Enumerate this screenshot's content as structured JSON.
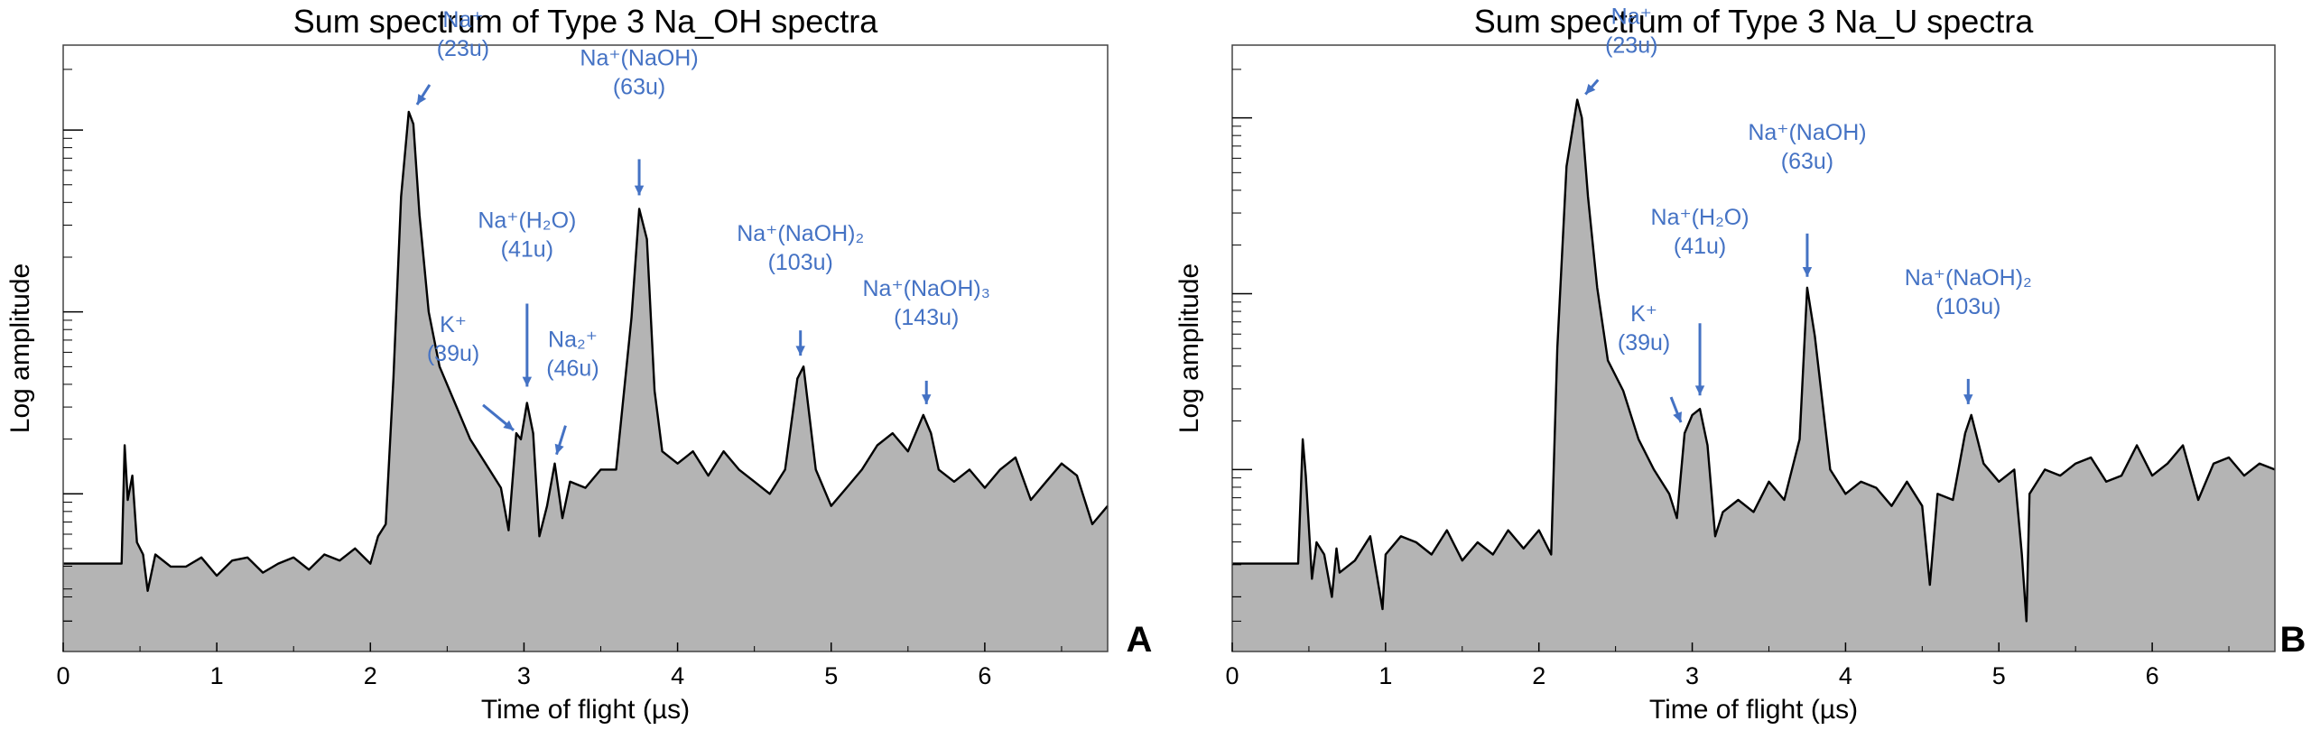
{
  "chart_data": [
    {
      "type": "area",
      "panel_letter": "A",
      "title": "Sum spectrum of Type 3 Na_OH spectra",
      "xlabel": "Time of flight (µs)",
      "ylabel": "Log amplitude",
      "xlim": [
        0,
        6.8
      ],
      "ylim": [
        0,
        10
      ],
      "y_scale": "log",
      "xticks": [
        "0",
        "1",
        "2",
        "3",
        "4",
        "5",
        "6"
      ],
      "grid": false,
      "fill_color": "#b4b4b4",
      "line_color": "#000000",
      "x": [
        0,
        0.38,
        0.4,
        0.42,
        0.45,
        0.48,
        0.52,
        0.55,
        0.6,
        0.7,
        0.8,
        0.9,
        1.0,
        1.1,
        1.2,
        1.3,
        1.4,
        1.5,
        1.6,
        1.7,
        1.8,
        1.9,
        2.0,
        2.05,
        2.1,
        2.15,
        2.2,
        2.25,
        2.28,
        2.32,
        2.38,
        2.45,
        2.55,
        2.65,
        2.75,
        2.85,
        2.9,
        2.95,
        2.98,
        3.02,
        3.06,
        3.1,
        3.15,
        3.2,
        3.25,
        3.3,
        3.4,
        3.5,
        3.6,
        3.7,
        3.75,
        3.8,
        3.85,
        3.9,
        4.0,
        4.1,
        4.2,
        4.3,
        4.4,
        4.5,
        4.6,
        4.7,
        4.78,
        4.82,
        4.9,
        5.0,
        5.1,
        5.2,
        5.3,
        5.4,
        5.5,
        5.6,
        5.65,
        5.7,
        5.8,
        5.9,
        6.0,
        6.1,
        6.2,
        6.3,
        6.4,
        6.5,
        6.6,
        6.7,
        6.8
      ],
      "values": [
        1.45,
        1.45,
        3.4,
        2.5,
        2.9,
        1.8,
        1.6,
        1.0,
        1.6,
        1.4,
        1.4,
        1.55,
        1.25,
        1.5,
        1.55,
        1.3,
        1.45,
        1.55,
        1.35,
        1.6,
        1.5,
        1.7,
        1.45,
        1.9,
        2.1,
        4.5,
        7.5,
        8.9,
        8.7,
        7.2,
        5.6,
        4.7,
        4.1,
        3.5,
        3.1,
        2.7,
        2.0,
        3.6,
        3.5,
        4.1,
        3.6,
        1.9,
        2.4,
        3.1,
        2.2,
        2.8,
        2.7,
        3.0,
        3.0,
        5.5,
        7.3,
        6.8,
        4.3,
        3.3,
        3.1,
        3.3,
        2.9,
        3.3,
        3.0,
        2.8,
        2.6,
        3.0,
        4.5,
        4.7,
        3.0,
        2.4,
        2.7,
        3.0,
        3.4,
        3.6,
        3.3,
        3.9,
        3.6,
        3.0,
        2.8,
        3.0,
        2.7,
        3.0,
        3.2,
        2.5,
        2.8,
        3.1,
        2.9,
        2.1,
        2.4
      ]
    },
    {
      "type": "area",
      "panel_letter": "B",
      "title": "Sum spectrum of Type 3 Na_U spectra",
      "xlabel": "Time of flight (µs)",
      "ylabel": "Log amplitude",
      "xlim": [
        0,
        6.8
      ],
      "ylim": [
        0,
        10
      ],
      "y_scale": "log",
      "xticks": [
        "0",
        "1",
        "2",
        "3",
        "4",
        "5",
        "6"
      ],
      "grid": false,
      "fill_color": "#b4b4b4",
      "line_color": "#000000",
      "x": [
        0,
        0.43,
        0.46,
        0.48,
        0.52,
        0.55,
        0.6,
        0.65,
        0.68,
        0.7,
        0.8,
        0.9,
        0.98,
        1.0,
        1.1,
        1.2,
        1.3,
        1.4,
        1.5,
        1.6,
        1.7,
        1.8,
        1.9,
        2.0,
        2.08,
        2.12,
        2.18,
        2.25,
        2.28,
        2.32,
        2.38,
        2.45,
        2.55,
        2.65,
        2.75,
        2.85,
        2.9,
        2.95,
        3.0,
        3.05,
        3.1,
        3.15,
        3.2,
        3.3,
        3.4,
        3.5,
        3.6,
        3.7,
        3.75,
        3.8,
        3.9,
        4.0,
        4.1,
        4.2,
        4.3,
        4.4,
        4.5,
        4.55,
        4.6,
        4.7,
        4.78,
        4.82,
        4.9,
        5.0,
        5.1,
        5.15,
        5.18,
        5.2,
        5.3,
        5.4,
        5.5,
        5.6,
        5.7,
        5.8,
        5.9,
        6.0,
        6.1,
        6.2,
        6.3,
        6.4,
        6.5,
        6.6,
        6.7,
        6.8
      ],
      "values": [
        1.45,
        1.45,
        3.5,
        2.9,
        1.2,
        1.8,
        1.6,
        0.9,
        1.7,
        1.3,
        1.5,
        1.9,
        0.7,
        1.6,
        1.9,
        1.8,
        1.6,
        2.0,
        1.5,
        1.8,
        1.6,
        2.0,
        1.7,
        2.0,
        1.6,
        5.0,
        8.0,
        9.1,
        8.8,
        7.5,
        6.0,
        4.8,
        4.3,
        3.5,
        3.0,
        2.6,
        2.2,
        3.6,
        3.9,
        4.0,
        3.4,
        1.9,
        2.3,
        2.5,
        2.3,
        2.8,
        2.5,
        3.5,
        6.0,
        5.2,
        3.0,
        2.6,
        2.8,
        2.7,
        2.4,
        2.8,
        2.4,
        1.1,
        2.6,
        2.5,
        3.6,
        3.9,
        3.1,
        2.8,
        3.0,
        1.6,
        0.5,
        2.6,
        3.0,
        2.9,
        3.1,
        3.2,
        2.8,
        2.9,
        3.4,
        2.9,
        3.1,
        3.4,
        2.5,
        3.1,
        3.2,
        2.9,
        3.1,
        3.0
      ]
    }
  ],
  "annotations": {
    "A": [
      {
        "lines": [
          "Na⁺",
          "(23u)"
        ],
        "x": 2.28,
        "y": 8.9
      },
      {
        "lines": [
          "Na⁺(H₂O)",
          "(41u)"
        ],
        "x": 3.02,
        "y": 4.1
      },
      {
        "lines": [
          "K⁺",
          "(39u)"
        ],
        "x": 2.98,
        "y": 3.5
      },
      {
        "lines": [
          "Na₂⁺",
          "(46u)"
        ],
        "x": 3.2,
        "y": 3.1
      },
      {
        "lines": [
          "Na⁺(NaOH)",
          "(63u)"
        ],
        "x": 3.75,
        "y": 7.3
      },
      {
        "lines": [
          "Na⁺(NaOH)₂",
          "(103u)"
        ],
        "x": 4.8,
        "y": 4.7
      },
      {
        "lines": [
          "Na⁺(NaOH)₃",
          "(143u)"
        ],
        "x": 5.62,
        "y": 3.9
      }
    ],
    "B": [
      {
        "lines": [
          "Na⁺",
          "(23u)"
        ],
        "x": 2.28,
        "y": 9.1
      },
      {
        "lines": [
          "Na⁺(H₂O)",
          "(41u)"
        ],
        "x": 3.05,
        "y": 4.0
      },
      {
        "lines": [
          "K⁺",
          "(39u)"
        ],
        "x": 2.95,
        "y": 3.6
      },
      {
        "lines": [
          "Na⁺(NaOH)",
          "(63u)"
        ],
        "x": 3.75,
        "y": 6.0
      },
      {
        "lines": [
          "Na⁺(NaOH)₂",
          "(103u)"
        ],
        "x": 4.8,
        "y": 3.9
      }
    ]
  }
}
